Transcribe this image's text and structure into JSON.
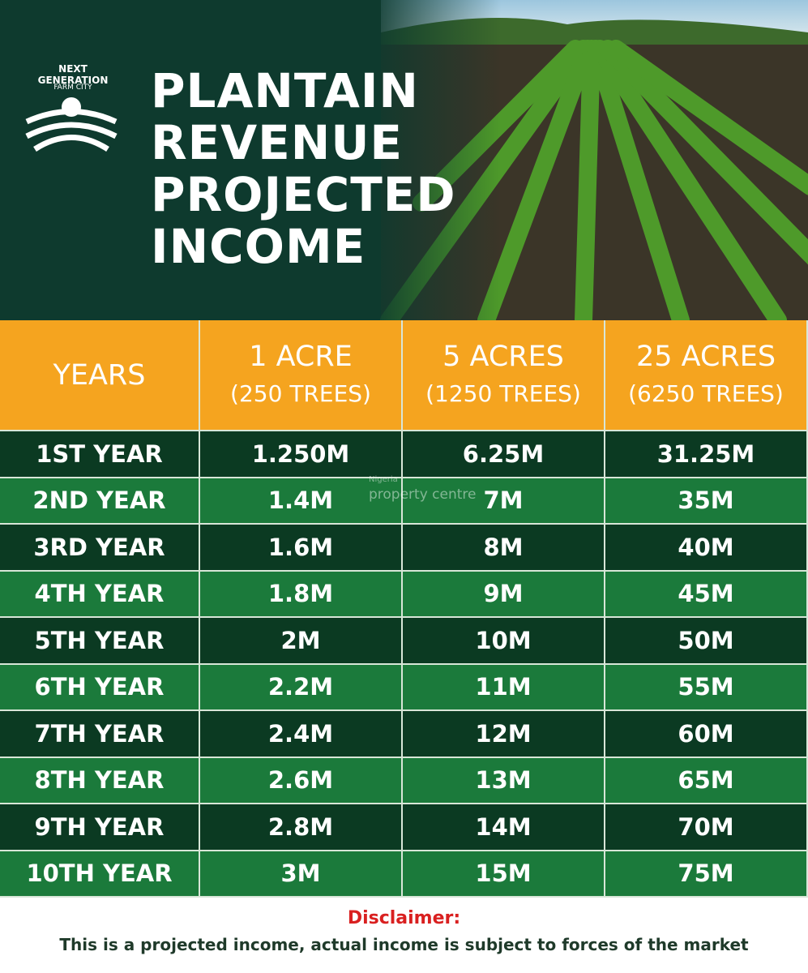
{
  "header": {
    "logo": {
      "top": "NEXT GENERATION",
      "bottom": "FARM CITY"
    },
    "title": [
      "PLANTAIN",
      "REVENUE",
      "PROJECTED",
      "INCOME"
    ]
  },
  "watermark": {
    "top": "Nigeria",
    "bottom": "property centre"
  },
  "table": {
    "columns": [
      [
        "YEARS"
      ],
      [
        "1 ACRE",
        "(250 TREES)"
      ],
      [
        "5 ACRES",
        "(1250 TREES)"
      ],
      [
        "25 ACRES",
        "(6250 TREES)"
      ]
    ],
    "rows": [
      [
        "1ST YEAR",
        "1.250M",
        "6.25M",
        "31.25M"
      ],
      [
        "2ND YEAR",
        "1.4M",
        "7M",
        "35M"
      ],
      [
        "3RD YEAR",
        "1.6M",
        "8M",
        "40M"
      ],
      [
        "4TH YEAR",
        "1.8M",
        "9M",
        "45M"
      ],
      [
        "5TH YEAR",
        "2M",
        "10M",
        "50M"
      ],
      [
        "6TH YEAR",
        "2.2M",
        "11M",
        "55M"
      ],
      [
        "7TH YEAR",
        "2.4M",
        "12M",
        "60M"
      ],
      [
        "8TH YEAR",
        "2.6M",
        "13M",
        "65M"
      ],
      [
        "9TH YEAR",
        "2.8M",
        "14M",
        "70M"
      ],
      [
        "10TH YEAR",
        "3M",
        "15M",
        "75M"
      ]
    ]
  },
  "disclaimer": {
    "title": "Disclaimer:",
    "text": "This is a projected income, actual income is subject to forces of the market"
  }
}
